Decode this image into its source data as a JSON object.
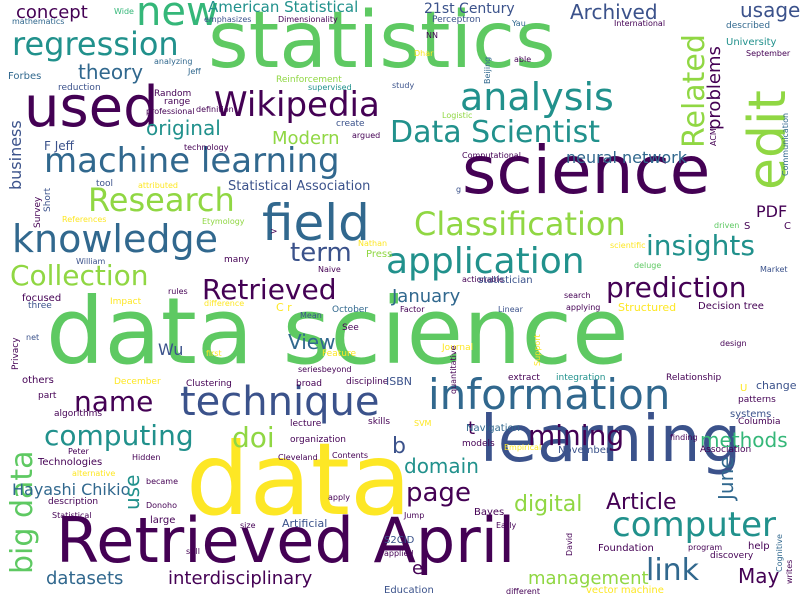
{
  "palette": {
    "dark_purple": "#440154",
    "indigo": "#3b528b",
    "blue": "#31688e",
    "teal": "#21918c",
    "green": "#35b779",
    "light_green": "#5ec962",
    "lime": "#90d743",
    "yellow": "#fde725"
  },
  "words": {
    "data_science": "data science",
    "statistics": "statistics",
    "data": "data",
    "science": "science",
    "learning": "learning",
    "retrieved_april": "Retrieved April",
    "used": "used",
    "new": "new",
    "regression": "regression",
    "analysis": "analysis",
    "wikipedia": "Wikipedia",
    "edit": "edit",
    "field": "field",
    "knowledge": "knowledge",
    "machine_learning": "machine learning",
    "data_scientist": "Data Scientist",
    "classification": "Classification",
    "research": "Research",
    "application": "application",
    "information": "information",
    "technique": "technique",
    "prediction": "prediction",
    "collection": "Collection",
    "insights": "insights",
    "related": "Related",
    "retrieved": "Retrieved",
    "big_data": "big data",
    "computing": "computing",
    "computer": "computer",
    "mining": "mining",
    "name": "name",
    "term": "term",
    "doi": "doi",
    "link": "link",
    "page": "page",
    "domain": "domain",
    "methods": "methods",
    "digital": "digital",
    "article": "Article",
    "management": "management",
    "interdisciplinary": "interdisciplinary",
    "datasets": "datasets",
    "may": "May",
    "june": "June",
    "theory": "theory",
    "archived": "Archived",
    "american_statistical": "American Statistical",
    "century_21": "21st Century",
    "usage": "usage",
    "concept": "concept",
    "original": "original",
    "modern": "Modern",
    "view": "View",
    "january": "January",
    "neural_network": "neural network",
    "business": "business",
    "problems": "problems",
    "hayashi_chikio": "Hayashi Chikio",
    "use": "use",
    "statistical_association": "Statistical Association",
    "pdf": "PDF",
    "wu": "Wu",
    "t": "t",
    "b": "b",
    "e": "e",
    "f_jeff": "F Jeff",
    "theory_small": "theory",
    "perceptron": "Perceptron",
    "mathematics": "mathematics",
    "wide": "Wide",
    "emphasizes": "emphasizes",
    "dimensionality": "Dimensionality",
    "international": "International",
    "yau": "Yau",
    "nn": "NN",
    "beijing": "Beijing",
    "able": "able",
    "university": "University",
    "september": "September",
    "described": "described",
    "forbes": "Forbes",
    "reduction": "reduction",
    "random": "Random",
    "range": "range",
    "professional": "professional",
    "analyzing": "analyzing",
    "jeff": "Jeff",
    "definition": "definition",
    "reinforcement": "Reinforcement",
    "supervised": "supervised",
    "study": "study",
    "dhar": "Dhar",
    "create": "create",
    "argued": "argued",
    "logistic": "Logistic",
    "acm": "ACM",
    "communication": "Communication",
    "technology": "technology",
    "computational": "Computational",
    "g": "g",
    "short": "Short",
    "survey": "Survey",
    "tool": "tool",
    "attributed": "attributed",
    "references": "References",
    "etymology": "Etymology",
    "william": "William",
    "nathan": "Nathan",
    "press": "Press",
    "driven": "driven",
    "scientific": "scientific",
    "deluge": "deluge",
    "many": "many",
    "naive": "Naive",
    "market": "Market",
    "c": "C",
    "s": "S",
    "focused": "focused",
    "impact": "Impact",
    "rules": "rules",
    "october": "October",
    "mean": "Mean",
    "cr": "C r",
    "actionable": "actionable",
    "statistician": "statistician",
    "search": "search",
    "applying": "applying",
    "linear": "Linear",
    "factor": "Factor",
    "structured": "Structured",
    "decision_tree": "Decision tree",
    "privacy": "Privacy",
    "three": "three",
    "difference": "difference",
    "net": "net",
    "first": "first",
    "feature": "Feature",
    "see": "See",
    "journal": "Journal",
    "support": "Support",
    "design": "design",
    "others": "others",
    "december": "December",
    "clustering": "Clustering",
    "series_beyond": "seriesbeyond",
    "broad": "broad",
    "discipline": "discipline",
    "isbn": "ISBN",
    "quantitative": "quantitative",
    "extract": "extract",
    "integration": "integration",
    "relationship": "Relationship",
    "patterns": "patterns",
    "change": "change",
    "u": "U",
    "part": "part",
    "systems": "systems",
    "algorithms": "algorithms",
    "lecture": "lecture",
    "skills": "skills",
    "svm": "SVM",
    "navigation": "Navigation",
    "columbia": "Columbia",
    "technologies": "Technologies",
    "peter": "Peter",
    "hidden": "Hidden",
    "cleveland": "Cleveland",
    "organization": "organization",
    "contents": "Contents",
    "models": "models",
    "empirical": "Empirical",
    "finding": "finding",
    "association": "Association",
    "alternative": "alternative",
    "became": "became",
    "description": "description",
    "donoho": "Donoho",
    "apply": "apply",
    "statistical_small": "Statistical",
    "large": "large",
    "size": "size",
    "artificial": "Artificial",
    "jump": "Jump",
    "bayes": "Bayes",
    "early": "Early",
    "david": "David",
    "program": "program",
    "help": "help",
    "discovery": "discovery",
    "cognitive": "Cognitive",
    "writes": "writes",
    "still": "still",
    "s2cid": "S2CID",
    "applied": "applied",
    "education": "Education",
    "different": "different",
    "vector_machine": "vector machine",
    "foundation": "Foundation",
    "november": "November",
    "gt": ">"
  }
}
